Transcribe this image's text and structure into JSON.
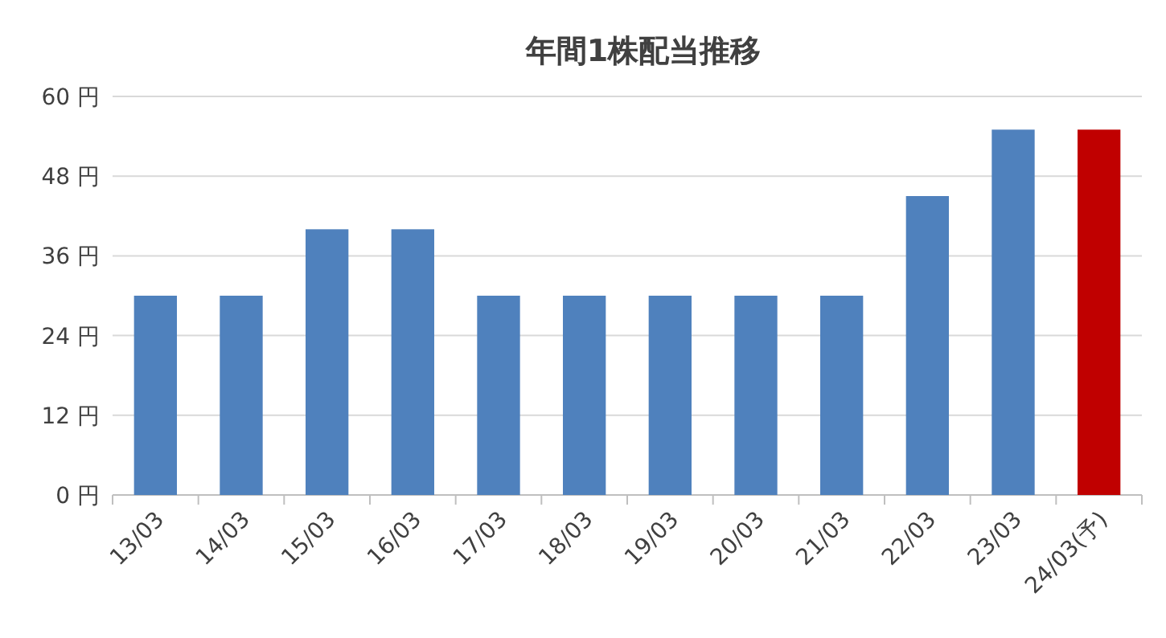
{
  "chart_data": {
    "type": "bar",
    "title": "年間1株配当推移",
    "categories": [
      "13/03",
      "14/03",
      "15/03",
      "16/03",
      "17/03",
      "18/03",
      "19/03",
      "20/03",
      "21/03",
      "22/03",
      "23/03",
      "24/03(予)"
    ],
    "values": [
      30,
      30,
      40,
      40,
      30,
      30,
      30,
      30,
      30,
      45,
      55,
      55
    ],
    "colors": [
      "#4f81bd",
      "#4f81bd",
      "#4f81bd",
      "#4f81bd",
      "#4f81bd",
      "#4f81bd",
      "#4f81bd",
      "#4f81bd",
      "#4f81bd",
      "#4f81bd",
      "#4f81bd",
      "#c00000"
    ],
    "ylim": [
      0,
      60
    ],
    "yticks": [
      {
        "value": 0,
        "label": "0 円"
      },
      {
        "value": 12,
        "label": "12 円"
      },
      {
        "value": 24,
        "label": "24 円"
      },
      {
        "value": 36,
        "label": "36 円"
      },
      {
        "value": 48,
        "label": "48 円"
      },
      {
        "value": 60,
        "label": "60 円"
      }
    ],
    "grid": "y"
  }
}
